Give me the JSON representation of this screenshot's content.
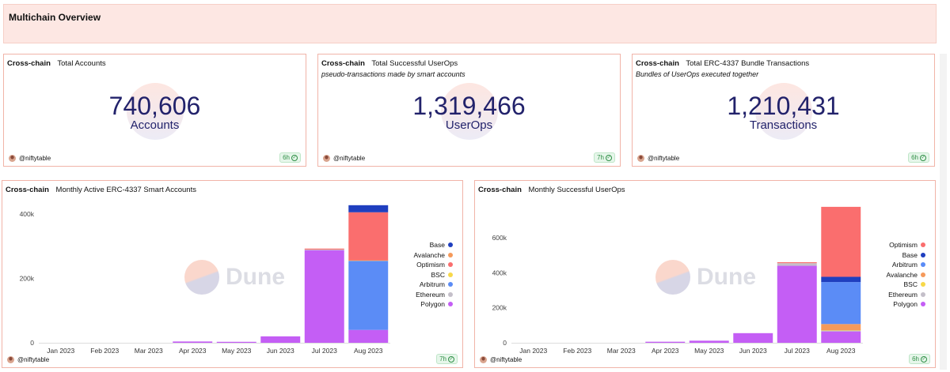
{
  "page": {
    "title": "Multichain Overview"
  },
  "counters": [
    {
      "chain": "Cross-chain",
      "title": "Total Accounts",
      "subtitle": "",
      "value": "740,606",
      "unit": "Accounts",
      "author": "@niftytable",
      "age": "6h"
    },
    {
      "chain": "Cross-chain",
      "title": "Total Successful UserOps",
      "subtitle": "pseudo-transactions made by smart accounts",
      "value": "1,319,466",
      "unit": "UserOps",
      "author": "@niftytable",
      "age": "7h"
    },
    {
      "chain": "Cross-chain",
      "title": "Total ERC-4337 Bundle Transactions",
      "subtitle": "Bundles of UserOps executed together",
      "value": "1,210,431",
      "unit": "Transactions",
      "author": "@niftytable",
      "age": "6h"
    }
  ],
  "charts": [
    {
      "chain": "Cross-chain",
      "title": "Monthly Active ERC-4337 Smart Accounts",
      "author": "@niftytable",
      "age": "7h",
      "watermark": "Dune"
    },
    {
      "chain": "Cross-chain",
      "title": "Monthly Successful UserOps",
      "author": "@niftytable",
      "age": "6h",
      "watermark": "Dune"
    }
  ],
  "colors": {
    "Base": "#1f3fbf",
    "Avalanche": "#f59a5b",
    "Optimism": "#fa6e6e",
    "BSC": "#f7d84a",
    "Arbitrum": "#5b8cf6",
    "Ethereum": "#c4bfc9",
    "Polygon": "#c45ef5"
  },
  "chart_data": [
    {
      "type": "bar",
      "stacked": true,
      "categories": [
        "Jan 2023",
        "Feb 2023",
        "Mar 2023",
        "Apr 2023",
        "May 2023",
        "Jun 2023",
        "Jul 2023",
        "Aug 2023"
      ],
      "ylim": [
        0,
        430000
      ],
      "yticks": [
        0,
        200000,
        400000
      ],
      "ytick_labels": [
        "0",
        "200k",
        "400k"
      ],
      "legend": [
        "Base",
        "Avalanche",
        "Optimism",
        "BSC",
        "Arbitrum",
        "Ethereum",
        "Polygon"
      ],
      "legend_position": "right",
      "series": [
        {
          "name": "Polygon",
          "values": [
            0,
            0,
            0,
            4000,
            3000,
            20000,
            288000,
            40000
          ]
        },
        {
          "name": "Ethereum",
          "values": [
            0,
            0,
            0,
            0,
            0,
            0,
            2000,
            0
          ]
        },
        {
          "name": "Arbitrum",
          "values": [
            0,
            0,
            0,
            0,
            0,
            0,
            0,
            215000
          ]
        },
        {
          "name": "BSC",
          "values": [
            0,
            0,
            0,
            0,
            0,
            0,
            0,
            1000
          ]
        },
        {
          "name": "Optimism",
          "values": [
            0,
            0,
            0,
            0,
            0,
            0,
            3000,
            150000
          ]
        },
        {
          "name": "Avalanche",
          "values": [
            0,
            0,
            0,
            0,
            0,
            0,
            0,
            0
          ]
        },
        {
          "name": "Base",
          "values": [
            0,
            0,
            0,
            0,
            0,
            0,
            0,
            22000
          ]
        }
      ]
    },
    {
      "type": "bar",
      "stacked": true,
      "categories": [
        "Jan 2023",
        "Feb 2023",
        "Mar 2023",
        "Apr 2023",
        "May 2023",
        "Jun 2023",
        "Jul 2023",
        "Aug 2023"
      ],
      "ylim": [
        0,
        790000
      ],
      "yticks": [
        0,
        200000,
        400000,
        600000
      ],
      "ytick_labels": [
        "0",
        "200k",
        "400k",
        "600k"
      ],
      "legend": [
        "Optimism",
        "Base",
        "Arbitrum",
        "Avalanche",
        "BSC",
        "Ethereum",
        "Polygon"
      ],
      "legend_position": "right",
      "series": [
        {
          "name": "Polygon",
          "values": [
            0,
            0,
            0,
            6000,
            12000,
            55000,
            440000,
            65000
          ]
        },
        {
          "name": "Ethereum",
          "values": [
            0,
            0,
            0,
            0,
            0,
            0,
            15000,
            5000
          ]
        },
        {
          "name": "BSC",
          "values": [
            0,
            0,
            0,
            0,
            0,
            0,
            0,
            2000
          ]
        },
        {
          "name": "Avalanche",
          "values": [
            0,
            0,
            0,
            0,
            0,
            0,
            0,
            35000
          ]
        },
        {
          "name": "Arbitrum",
          "values": [
            0,
            0,
            0,
            0,
            0,
            0,
            0,
            240000
          ]
        },
        {
          "name": "Base",
          "values": [
            0,
            0,
            0,
            0,
            0,
            0,
            0,
            30000
          ]
        },
        {
          "name": "Optimism",
          "values": [
            0,
            0,
            0,
            0,
            0,
            0,
            5000,
            400000
          ]
        }
      ]
    }
  ]
}
